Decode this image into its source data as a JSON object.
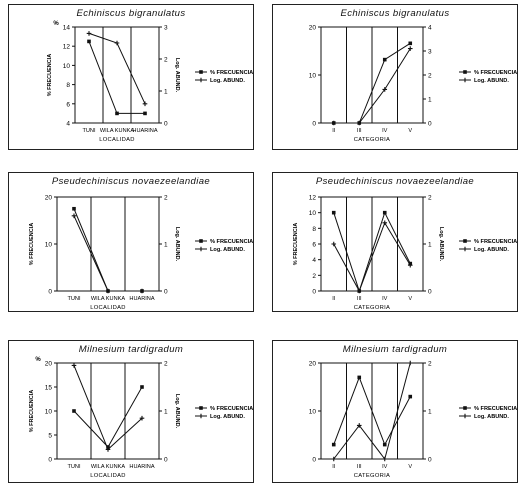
{
  "legend": {
    "frecuencia": "% FRECUENCIA",
    "abund": "Log. ABUND."
  },
  "chart_data": [
    {
      "id": "p1",
      "type": "line",
      "title": "Echiniscus   bigranulatus",
      "categories": [
        "TUNI",
        "WILA KUNKA",
        "HUARINA"
      ],
      "xlabel": "LOCALIDAD",
      "ylabel_left": "% FRECUENCIA",
      "ylabel_left_short": "%",
      "ylabel_right": "Log. ABUND.",
      "yleft": {
        "min": 4,
        "max": 14,
        "ticks": [
          "4",
          "6",
          "8",
          "10",
          "12",
          "14"
        ]
      },
      "yright": {
        "min": 0,
        "max": 3,
        "ticks": [
          "0",
          "1",
          "2",
          "3"
        ]
      },
      "series": [
        {
          "name": "% FRECUENCIA",
          "axis": "left",
          "marker": "square",
          "values": [
            12.5,
            5,
            5
          ]
        },
        {
          "name": "Log. ABUND.",
          "axis": "right",
          "marker": "plus",
          "values": [
            2.8,
            2.5,
            0.6
          ]
        }
      ]
    },
    {
      "id": "p2",
      "type": "line",
      "title": "Echiniscus   bigranulatus",
      "categories": [
        "II",
        "III",
        "IV",
        "V"
      ],
      "xlabel": "CATEGORIA",
      "ylabel_left": "",
      "ylabel_left_short": "",
      "ylabel_right": "",
      "yleft": {
        "min": 0,
        "max": 20,
        "ticks": [
          "0",
          "10",
          "20"
        ]
      },
      "yright": {
        "min": 0,
        "max": 4,
        "ticks": [
          "0",
          "1",
          "2",
          "3",
          "4"
        ]
      },
      "series": [
        {
          "name": "% FRECUENCIA",
          "axis": "left",
          "marker": "square",
          "values": [
            0,
            0,
            13.2,
            16.6
          ]
        },
        {
          "name": "Log. ABUND.",
          "axis": "right",
          "marker": "plus",
          "values": [
            0,
            0,
            1.4,
            3.1
          ]
        }
      ]
    },
    {
      "id": "p3",
      "type": "line",
      "title": "Pseudechiniscus   novaezeelandiae",
      "categories": [
        "TUNI",
        "WILA KUNKA",
        "HUARINA"
      ],
      "xlabel": "LOCALIDAD",
      "ylabel_left": "% FRECUENCIA",
      "ylabel_left_short": "",
      "ylabel_right": "Log. ABUND.",
      "yleft": {
        "min": 0,
        "max": 20,
        "ticks": [
          "0",
          "10",
          "20"
        ]
      },
      "yright": {
        "min": 0,
        "max": 2,
        "ticks": [
          "0",
          "1",
          "2"
        ]
      },
      "series": [
        {
          "name": "% FRECUENCIA",
          "axis": "left",
          "marker": "square",
          "values": [
            17.5,
            0,
            0
          ]
        },
        {
          "name": "Log. ABUND.",
          "axis": "right",
          "marker": "plus",
          "values": [
            1.6,
            0,
            0
          ]
        }
      ]
    },
    {
      "id": "p4",
      "type": "line",
      "title": "Pseudechiniscus   novaezeelandiae",
      "categories": [
        "II",
        "III",
        "IV",
        "V"
      ],
      "xlabel": "CATEGORIA",
      "ylabel_left": "% FRECUENCIA",
      "ylabel_left_short": "",
      "ylabel_right": "Log. ABUND.",
      "yleft": {
        "min": 0,
        "max": 12,
        "ticks": [
          "0",
          "2",
          "4",
          "6",
          "8",
          "10",
          "12"
        ]
      },
      "yright": {
        "min": 0,
        "max": 2,
        "ticks": [
          "0",
          "1",
          "2"
        ]
      },
      "series": [
        {
          "name": "% FRECUENCIA",
          "axis": "left",
          "marker": "square",
          "values": [
            10,
            0,
            10,
            3.5
          ]
        },
        {
          "name": "Log. ABUND.",
          "axis": "right",
          "marker": "plus",
          "values": [
            1,
            0,
            1.45,
            0.55
          ]
        }
      ]
    },
    {
      "id": "p5",
      "type": "line",
      "title": "Milnesium   tardigradum",
      "categories": [
        "TUNI",
        "WILA KUNKA",
        "HUARINA"
      ],
      "xlabel": "LOCALIDAD",
      "ylabel_left": "% FRECUENCIA",
      "ylabel_left_short": "%",
      "ylabel_right": "Log. ABUND.",
      "yleft": {
        "min": 0,
        "max": 20,
        "ticks": [
          "0",
          "5",
          "10",
          "15",
          "20"
        ]
      },
      "yright": {
        "min": 0,
        "max": 2,
        "ticks": [
          "0",
          "1",
          "2"
        ]
      },
      "series": [
        {
          "name": "% FRECUENCIA",
          "axis": "left",
          "marker": "square",
          "values": [
            10,
            2.5,
            15
          ]
        },
        {
          "name": "Log. ABUND.",
          "axis": "right",
          "marker": "plus",
          "values": [
            1.95,
            0.2,
            0.85
          ]
        }
      ]
    },
    {
      "id": "p6",
      "type": "line",
      "title": "Milnesium   tardigradum",
      "categories": [
        "II",
        "III",
        "IV",
        "V"
      ],
      "xlabel": "CATEGORIA",
      "ylabel_left": "",
      "ylabel_left_short": "",
      "ylabel_right": "",
      "yleft": {
        "min": 0,
        "max": 20,
        "ticks": [
          "0",
          "10",
          "20"
        ]
      },
      "yright": {
        "min": 0,
        "max": 2,
        "ticks": [
          "0",
          "1",
          "2"
        ]
      },
      "series": [
        {
          "name": "% FRECUENCIA",
          "axis": "left",
          "marker": "square",
          "values": [
            3,
            17,
            3,
            13
          ]
        },
        {
          "name": "Log. ABUND.",
          "axis": "right",
          "marker": "plus",
          "values": [
            0,
            0.7,
            0,
            2
          ]
        }
      ]
    }
  ]
}
